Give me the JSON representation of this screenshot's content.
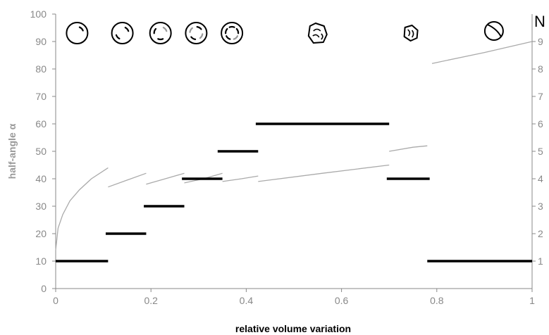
{
  "chart_data": {
    "type": "line",
    "xlabel": "relative volume variation",
    "ylabel": "half-angle α",
    "right_label": "N",
    "xlim": [
      0,
      1
    ],
    "ylim": [
      0,
      100
    ],
    "y2lim": [
      0,
      10
    ],
    "x_ticks": [
      "0",
      "0.2",
      "0.4",
      "0.6",
      "0.8",
      "1"
    ],
    "x_tick_values": [
      0,
      0.2,
      0.4,
      0.6,
      0.8,
      1
    ],
    "y_ticks": [
      "0",
      "10",
      "20",
      "30",
      "40",
      "50",
      "60",
      "70",
      "80",
      "90",
      "100"
    ],
    "y_tick_values": [
      0,
      10,
      20,
      30,
      40,
      50,
      60,
      70,
      80,
      90,
      100
    ],
    "y2_ticks": [
      "1",
      "2",
      "3",
      "4",
      "5",
      "6",
      "7",
      "8",
      "9"
    ],
    "y2_tick_values": [
      1,
      2,
      3,
      4,
      5,
      6,
      7,
      8,
      9
    ],
    "grid": false,
    "colors": {
      "half_angle": "#aaaaaa",
      "n_steps": "#000000",
      "axis": "#888888"
    },
    "n_steps": [
      {
        "x0": 0.0,
        "x1": 0.11,
        "n": 1
      },
      {
        "x0": 0.105,
        "x1": 0.19,
        "n": 2
      },
      {
        "x0": 0.185,
        "x1": 0.27,
        "n": 3
      },
      {
        "x0": 0.265,
        "x1": 0.35,
        "n": 4
      },
      {
        "x0": 0.34,
        "x1": 0.425,
        "n": 5
      },
      {
        "x0": 0.42,
        "x1": 0.7,
        "n": 6
      },
      {
        "x0": 0.695,
        "x1": 0.785,
        "n": 4
      },
      {
        "x0": 0.78,
        "x1": 1.0,
        "n": 1
      }
    ],
    "half_angle_segments": [
      {
        "x": [
          0.0,
          0.005,
          0.015,
          0.03,
          0.05,
          0.075,
          0.11
        ],
        "y": [
          14,
          22,
          27,
          32,
          36,
          40,
          44
        ]
      },
      {
        "x": [
          0.11,
          0.15,
          0.19
        ],
        "y": [
          37,
          39.5,
          42
        ]
      },
      {
        "x": [
          0.19,
          0.23,
          0.27
        ],
        "y": [
          38,
          40,
          42
        ]
      },
      {
        "x": [
          0.27,
          0.31,
          0.35
        ],
        "y": [
          38.5,
          40,
          42
        ]
      },
      {
        "x": [
          0.35,
          0.39,
          0.425
        ],
        "y": [
          39,
          40,
          41
        ]
      },
      {
        "x": [
          0.425,
          0.56,
          0.7
        ],
        "y": [
          39,
          42,
          45
        ]
      },
      {
        "x": [
          0.7,
          0.75,
          0.78
        ],
        "y": [
          50,
          51.5,
          52
        ]
      },
      {
        "x": [
          0.79,
          0.9,
          1.0
        ],
        "y": [
          82,
          86,
          90
        ]
      }
    ],
    "cell_icons": [
      {
        "x": 0.045,
        "variant": "empty"
      },
      {
        "x": 0.14,
        "variant": "two-arcs"
      },
      {
        "x": 0.22,
        "variant": "three-arcs"
      },
      {
        "x": 0.295,
        "variant": "four-arcs"
      },
      {
        "x": 0.37,
        "variant": "five-arcs"
      },
      {
        "x": 0.55,
        "variant": "faceted"
      },
      {
        "x": 0.745,
        "variant": "small-faceted"
      },
      {
        "x": 0.92,
        "variant": "split"
      }
    ]
  }
}
